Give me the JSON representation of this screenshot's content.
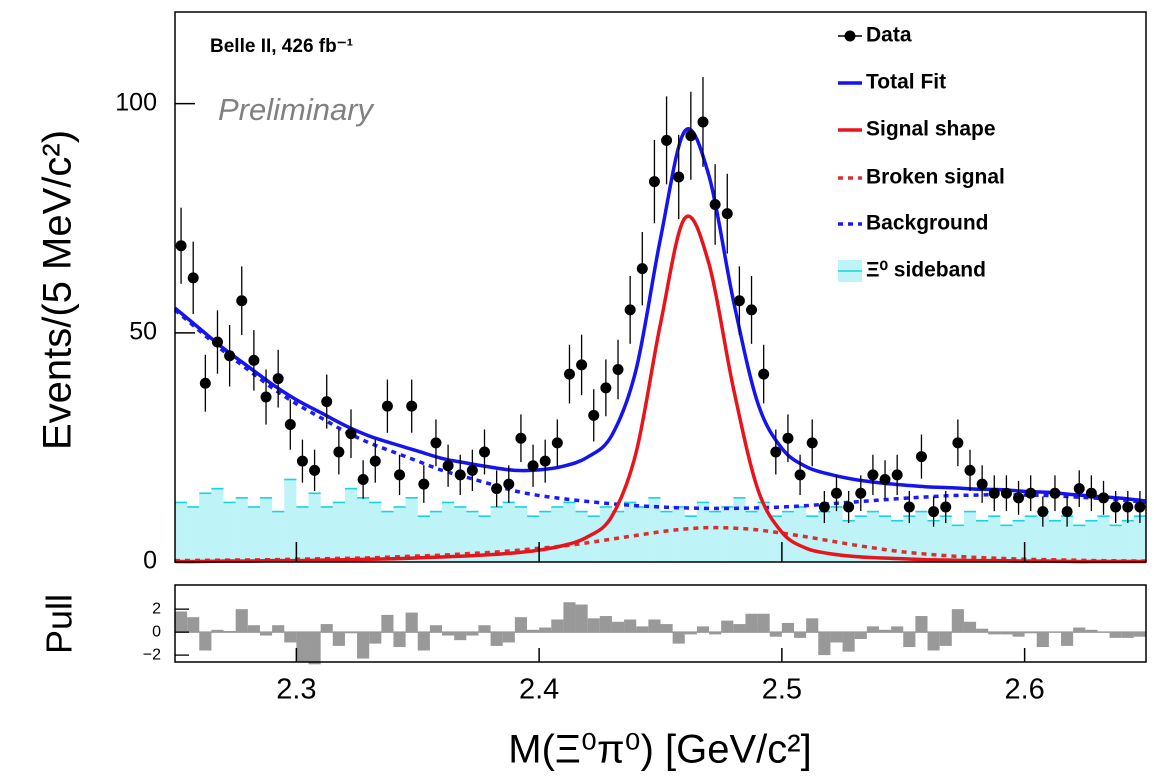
{
  "chart_data": [
    {
      "type": "histfit",
      "label": "Belle II, 426 fb⁻¹",
      "annotation": "Preliminary",
      "y_label": "Events/(5 MeV/c²)",
      "xlim": [
        2.25,
        2.65
      ],
      "ylim": [
        0,
        120
      ],
      "yticks": [
        0,
        50,
        100
      ],
      "legend": "top-right",
      "bins": [
        2.25,
        2.255,
        2.26,
        2.265,
        2.27,
        2.275,
        2.28,
        2.285,
        2.29,
        2.295,
        2.3,
        2.305,
        2.31,
        2.315,
        2.32,
        2.325,
        2.33,
        2.335,
        2.34,
        2.345,
        2.35,
        2.355,
        2.36,
        2.365,
        2.37,
        2.375,
        2.38,
        2.385,
        2.39,
        2.395,
        2.4,
        2.405,
        2.41,
        2.415,
        2.42,
        2.425,
        2.43,
        2.435,
        2.44,
        2.445,
        2.45,
        2.455,
        2.46,
        2.465,
        2.47,
        2.475,
        2.48,
        2.485,
        2.49,
        2.495,
        2.5,
        2.505,
        2.51,
        2.515,
        2.52,
        2.525,
        2.53,
        2.535,
        2.54,
        2.545,
        2.55,
        2.555,
        2.56,
        2.565,
        2.57,
        2.575,
        2.58,
        2.585,
        2.59,
        2.595,
        2.6,
        2.605,
        2.61,
        2.615,
        2.62,
        2.625,
        2.63,
        2.635,
        2.64,
        2.645,
        2.65
      ],
      "data": {
        "name": "Data",
        "color": "#000000",
        "values": [
          69,
          62,
          39,
          48,
          45,
          57,
          44,
          36,
          40,
          30,
          22,
          20,
          35,
          24,
          28,
          18,
          22,
          34,
          19,
          34,
          17,
          26,
          21,
          19,
          20,
          24,
          16,
          17,
          27,
          21,
          22,
          26,
          41,
          43,
          32,
          38,
          42,
          55,
          64,
          83,
          92,
          84,
          93,
          96,
          78,
          76,
          57,
          55,
          41,
          24,
          27,
          19,
          26,
          12,
          15,
          12,
          15,
          19,
          18,
          19,
          12,
          23,
          11,
          12,
          26,
          20,
          17,
          15,
          15,
          14,
          15,
          11,
          15,
          11,
          16,
          15,
          14,
          12,
          12,
          12
        ],
        "errors": [
          8.3,
          7.9,
          6.2,
          6.9,
          6.7,
          7.5,
          6.6,
          6,
          6.3,
          5.5,
          4.7,
          4.5,
          5.9,
          4.9,
          5.3,
          4.2,
          4.7,
          5.8,
          4.4,
          5.8,
          4.1,
          5.1,
          4.6,
          4.4,
          4.5,
          4.9,
          4,
          4.1,
          5.2,
          4.6,
          4.7,
          5.1,
          6.4,
          6.6,
          5.7,
          6.2,
          6.5,
          7.4,
          8,
          9.1,
          9.6,
          9.2,
          9.6,
          9.8,
          8.8,
          8.7,
          7.5,
          7.4,
          6.4,
          4.9,
          5.2,
          4.4,
          5.1,
          3.5,
          3.9,
          3.5,
          3.9,
          4.4,
          4.2,
          4.4,
          3.5,
          4.8,
          3.3,
          3.5,
          5.1,
          4.5,
          4.1,
          3.9,
          3.9,
          3.7,
          3.9,
          3.3,
          3.9,
          3.3,
          4,
          3.9,
          3.7,
          3.5,
          3.5,
          3.5
        ]
      },
      "curve_x": [
        2.25,
        2.26,
        2.27,
        2.28,
        2.29,
        2.3,
        2.31,
        2.32,
        2.33,
        2.34,
        2.35,
        2.36,
        2.37,
        2.38,
        2.39,
        2.4,
        2.41,
        2.42,
        2.43,
        2.44,
        2.45,
        2.46,
        2.47,
        2.48,
        2.49,
        2.5,
        2.51,
        2.52,
        2.53,
        2.54,
        2.55,
        2.56,
        2.57,
        2.58,
        2.59,
        2.6,
        2.61,
        2.62,
        2.63,
        2.64,
        2.65
      ],
      "curves": [
        {
          "name": "Total Fit",
          "color": "#1414f0",
          "style": "solid",
          "values": [
            55.4,
            51,
            46.6,
            42.7,
            38.8,
            35.4,
            32.6,
            29.8,
            27.5,
            25.8,
            24.2,
            22.6,
            21.6,
            20.7,
            20,
            20.1,
            20.9,
            22.9,
            27.7,
            42.1,
            70.6,
            94,
            84.2,
            57.1,
            34.8,
            24.8,
            20.8,
            19.1,
            18,
            17.3,
            16.8,
            16.4,
            16.2,
            15.9,
            15.8,
            15.4,
            15.2,
            14.7,
            14.3,
            13.9,
            13.3
          ]
        },
        {
          "name": "Signal shape",
          "color": "#e8141c",
          "style": "solid",
          "values": [
            0.1,
            0.1,
            0.2,
            0.2,
            0.3,
            0.3,
            0.4,
            0.5,
            0.6,
            0.7,
            0.9,
            1.1,
            1.3,
            1.6,
            2,
            2.6,
            3.6,
            5.5,
            10,
            24,
            52,
            75,
            65,
            38,
            16,
            6.5,
            3,
            1.8,
            1.2,
            0.9,
            0.7,
            0.5,
            0.4,
            0.3,
            0.3,
            0.2,
            0.2,
            0.1,
            0.1,
            0.1,
            0.1
          ]
        },
        {
          "name": "Broken signal",
          "color": "#d83030",
          "style": "dashed",
          "values": [
            0.3,
            0.35,
            0.4,
            0.45,
            0.5,
            0.6,
            0.7,
            0.8,
            0.9,
            1.1,
            1.3,
            1.5,
            1.8,
            2.1,
            2.5,
            3,
            3.5,
            4.2,
            5,
            5.8,
            6.6,
            7.2,
            7.5,
            7.4,
            7,
            6.3,
            5.5,
            4.6,
            3.7,
            2.9,
            2.2,
            1.7,
            1.3,
            1,
            0.8,
            0.6,
            0.5,
            0.4,
            0.3,
            0.25,
            0.2
          ]
        },
        {
          "name": "Background",
          "color": "#1a1aff",
          "style": "dashed",
          "values": [
            55,
            50.5,
            46,
            42,
            38,
            34.5,
            31.5,
            28.5,
            26,
            24,
            22,
            20,
            18.5,
            17,
            15.5,
            14.5,
            13.8,
            13.2,
            12.7,
            12.3,
            12,
            11.8,
            11.7,
            11.7,
            11.8,
            12,
            12.3,
            12.7,
            13.1,
            13.5,
            13.9,
            14.2,
            14.5,
            14.6,
            14.7,
            14.6,
            14.5,
            14.2,
            13.9,
            13.5,
            13
          ]
        }
      ],
      "sideband": {
        "name": "Ξ⁰ sideband",
        "color": "#16d4e4",
        "values": [
          13,
          12,
          15,
          16,
          13,
          14,
          12,
          14,
          11,
          18,
          12,
          15,
          12,
          13,
          16,
          14,
          13,
          11,
          12,
          14,
          10,
          11,
          13,
          12,
          11,
          10,
          12,
          13,
          12,
          10,
          11,
          12,
          13,
          11,
          10,
          12,
          11,
          13,
          12,
          14,
          11,
          12,
          10,
          13,
          11,
          12,
          14,
          11,
          13,
          10,
          11,
          12,
          10,
          11,
          12,
          9,
          10,
          11,
          10,
          9,
          10,
          11,
          9,
          10,
          8,
          11,
          9,
          10,
          8,
          9,
          10,
          11,
          9,
          10,
          8,
          9,
          10,
          8,
          9,
          10
        ]
      }
    },
    {
      "type": "histogram",
      "y_label": "Pull",
      "x_label": "M(Ξ⁰π⁰) [GeV/c²]",
      "color": "#999999",
      "xticks": [
        2.3,
        2.4,
        2.5,
        2.6
      ],
      "ylim": [
        -2.6,
        4.1
      ],
      "yticks": [
        2,
        0,
        {
          "value": -2,
          "label": "−2"
        }
      ],
      "values": [
        1.8,
        1.3,
        -1.6,
        0.2,
        0.1,
        2,
        0.6,
        -0.3,
        0.6,
        -0.9,
        -2.6,
        -2.8,
        0.7,
        -1.2,
        -0.1,
        -2.3,
        -1,
        1.5,
        -1.3,
        1.7,
        -1.6,
        0.6,
        -0.3,
        -0.7,
        -0.3,
        0.6,
        -1.2,
        -0.9,
        1.3,
        0.2,
        0.4,
        1.1,
        2.6,
        2.4,
        1.2,
        1.4,
        0.9,
        1.1,
        0.5,
        1.1,
        0.7,
        -1,
        -0.2,
        0.5,
        -0.2,
        1,
        0.7,
        1.6,
        1.6,
        -0.4,
        0.8,
        -0.5,
        1.2,
        -2,
        -0.9,
        -1.7,
        -0.6,
        0.5,
        0.2,
        0.5,
        -1.3,
        1.4,
        -1.6,
        -1.2,
        2,
        0.9,
        0.3,
        -0.2,
        -0.2,
        -0.4,
        -0.1,
        -1.3,
        0,
        -1.2,
        0.4,
        0.2,
        0,
        -0.5,
        -0.5,
        -0.4
      ]
    }
  ]
}
